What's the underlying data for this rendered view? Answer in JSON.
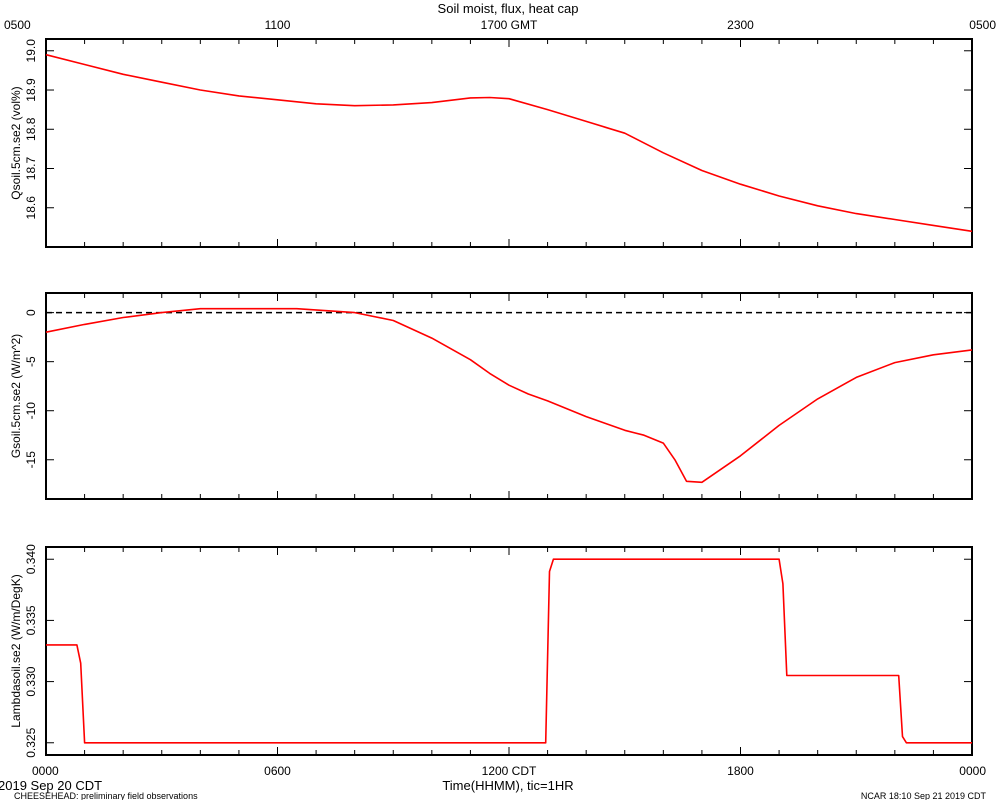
{
  "title": "Soil moist, flux, heat cap",
  "top_axis": {
    "tick_labels": [
      "0500",
      "1100",
      "1700 GMT",
      "2300",
      "0500"
    ]
  },
  "bottom_axis": {
    "tick_labels": [
      "0000",
      "0600",
      "1200 CDT",
      "1800",
      "0000"
    ],
    "xlabel": "Time(HHMM), tic=1HR"
  },
  "footer": {
    "date": "2019 Sep 20 CDT",
    "project": "CHEESEHEAD: preliminary field observations",
    "stamp": "NCAR 18:10 Sep 21 2019 CDT"
  },
  "colors": {
    "series": "#ff0000",
    "axes": "#000000",
    "zero_line": "#000000"
  },
  "chart_data": [
    {
      "type": "line",
      "title": "Soil moist, flux, heat cap",
      "xlabel": "",
      "ylabel": "Qsoil.5cm.se2 (vol%)",
      "xlim": [
        0,
        24
      ],
      "ylim": [
        18.5,
        19.03
      ],
      "yticks": [
        18.6,
        18.7,
        18.8,
        18.9,
        19.0
      ],
      "ytick_labels": [
        "18.6",
        "18.7",
        "18.8",
        "18.9",
        "19.0"
      ],
      "x": [
        0,
        1,
        2,
        3,
        4,
        5,
        6,
        7,
        8,
        9,
        10,
        11,
        11.5,
        12,
        13,
        14,
        14.5,
        15,
        16,
        17,
        18,
        19,
        20,
        21,
        22,
        23,
        24
      ],
      "y": [
        18.99,
        18.965,
        18.94,
        18.92,
        18.9,
        18.885,
        18.875,
        18.865,
        18.86,
        18.862,
        18.868,
        18.88,
        18.881,
        18.878,
        18.85,
        18.82,
        18.805,
        18.79,
        18.74,
        18.695,
        18.66,
        18.63,
        18.605,
        18.585,
        18.57,
        18.555,
        18.54
      ]
    },
    {
      "type": "line",
      "ylabel": "Gsoil.5cm.se2 (W/m^2)",
      "xlim": [
        0,
        24
      ],
      "ylim": [
        -19,
        2
      ],
      "yticks": [
        0,
        -5,
        -10,
        -15
      ],
      "ytick_labels": [
        "0",
        "-5",
        "-10",
        "-15"
      ],
      "reference_line": 0,
      "x": [
        0,
        1,
        2,
        3,
        4,
        6.5,
        8,
        9,
        10,
        11,
        11.5,
        12,
        12.5,
        13,
        14,
        15,
        15.5,
        16,
        16.3,
        16.6,
        17,
        18,
        19,
        20,
        21,
        22,
        23,
        24
      ],
      "y": [
        -2.0,
        -1.2,
        -0.5,
        0.0,
        0.4,
        0.4,
        0.0,
        -0.8,
        -2.6,
        -4.8,
        -6.2,
        -7.4,
        -8.3,
        -9.0,
        -10.6,
        -12.0,
        -12.5,
        -13.3,
        -15.0,
        -17.2,
        -17.3,
        -14.6,
        -11.5,
        -8.8,
        -6.6,
        -5.1,
        -4.3,
        -3.8
      ]
    },
    {
      "type": "line",
      "ylabel": "Lambdasoil.se2 (W/m/DegK)",
      "xlim": [
        0,
        24
      ],
      "ylim": [
        0.324,
        0.341
      ],
      "yticks": [
        0.325,
        0.33,
        0.335,
        0.34
      ],
      "ytick_labels": [
        "0.325",
        "0.330",
        "0.335",
        "0.340"
      ],
      "x": [
        0,
        0.8,
        0.9,
        1.0,
        12.95,
        13.05,
        13.15,
        19.0,
        19.1,
        19.2,
        22.1,
        22.2,
        22.3,
        24
      ],
      "y": [
        0.333,
        0.333,
        0.3315,
        0.325,
        0.325,
        0.339,
        0.34,
        0.34,
        0.338,
        0.3305,
        0.3305,
        0.3255,
        0.325,
        0.325
      ]
    }
  ]
}
